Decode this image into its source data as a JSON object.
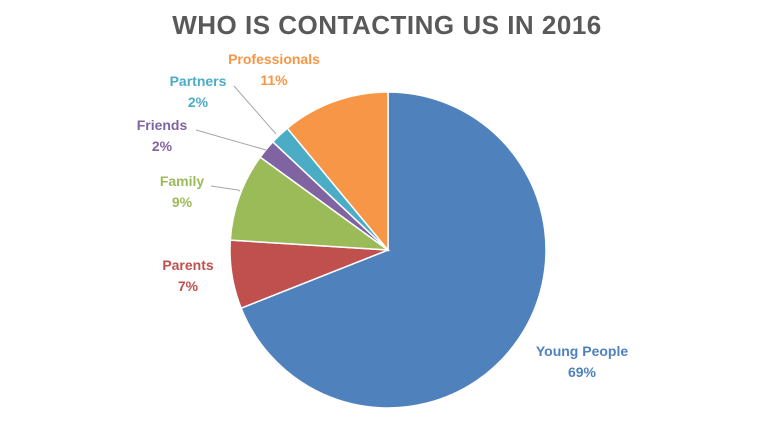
{
  "chart_data": {
    "type": "pie",
    "title": "WHO IS CONTACTING US IN 2016",
    "slices": [
      {
        "label": "Young People",
        "value": 69,
        "value_label": "69%",
        "color": "#4F81BD"
      },
      {
        "label": "Parents",
        "value": 7,
        "value_label": "7%",
        "color": "#C0504D"
      },
      {
        "label": "Family",
        "value": 9,
        "value_label": "9%",
        "color": "#9BBB59"
      },
      {
        "label": "Friends",
        "value": 2,
        "value_label": "2%",
        "color": "#8064A2"
      },
      {
        "label": "Partners",
        "value": 2,
        "value_label": "2%",
        "color": "#4BACC6"
      },
      {
        "label": "Professionals",
        "value": 11,
        "value_label": "11%",
        "color": "#F79646"
      }
    ],
    "start_angle": "12 o'clock",
    "direction": "clockwise",
    "legend": "none (data labels with leader lines)"
  }
}
